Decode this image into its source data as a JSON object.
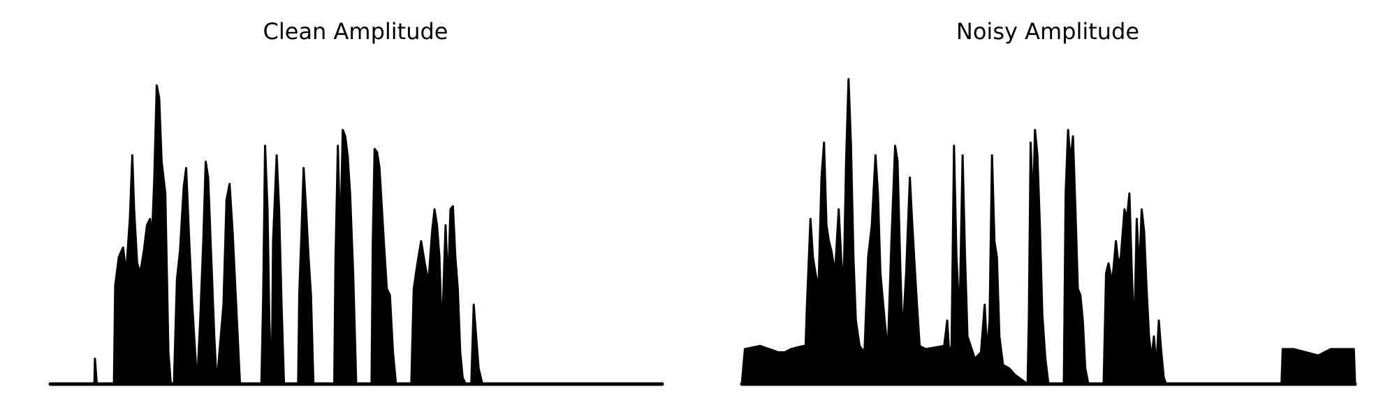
{
  "chart_data": [
    {
      "type": "line",
      "title": "Clean Amplitude",
      "axes_visible": false,
      "grid": false,
      "ylim": [
        0,
        1
      ],
      "x_range": [
        0,
        1
      ],
      "color": "#000000",
      "envelope": [
        [
          0.0,
          0.0
        ],
        [
          0.072,
          0.0
        ],
        [
          0.073,
          0.08
        ],
        [
          0.076,
          0.0
        ],
        [
          0.104,
          0.0
        ],
        [
          0.106,
          0.31
        ],
        [
          0.112,
          0.4
        ],
        [
          0.119,
          0.43
        ],
        [
          0.124,
          0.35
        ],
        [
          0.13,
          0.52
        ],
        [
          0.134,
          0.72
        ],
        [
          0.137,
          0.55
        ],
        [
          0.142,
          0.38
        ],
        [
          0.147,
          0.35
        ],
        [
          0.153,
          0.42
        ],
        [
          0.158,
          0.5
        ],
        [
          0.163,
          0.52
        ],
        [
          0.166,
          0.45
        ],
        [
          0.17,
          0.65
        ],
        [
          0.174,
          0.94
        ],
        [
          0.178,
          0.9
        ],
        [
          0.182,
          0.7
        ],
        [
          0.188,
          0.6
        ],
        [
          0.193,
          0.1
        ],
        [
          0.197,
          0.0
        ],
        [
          0.202,
          0.0
        ],
        [
          0.207,
          0.33
        ],
        [
          0.212,
          0.42
        ],
        [
          0.218,
          0.62
        ],
        [
          0.222,
          0.68
        ],
        [
          0.227,
          0.45
        ],
        [
          0.232,
          0.25
        ],
        [
          0.24,
          0.0
        ],
        [
          0.245,
          0.2
        ],
        [
          0.25,
          0.45
        ],
        [
          0.254,
          0.7
        ],
        [
          0.258,
          0.65
        ],
        [
          0.263,
          0.4
        ],
        [
          0.268,
          0.15
        ],
        [
          0.272,
          0.0
        ],
        [
          0.283,
          0.25
        ],
        [
          0.288,
          0.58
        ],
        [
          0.293,
          0.63
        ],
        [
          0.298,
          0.48
        ],
        [
          0.305,
          0.2
        ],
        [
          0.31,
          0.0
        ],
        [
          0.345,
          0.0
        ],
        [
          0.348,
          0.28
        ],
        [
          0.351,
          0.75
        ],
        [
          0.355,
          0.55
        ],
        [
          0.358,
          0.2
        ],
        [
          0.362,
          0.0
        ],
        [
          0.364,
          0.45
        ],
        [
          0.37,
          0.72
        ],
        [
          0.374,
          0.55
        ],
        [
          0.378,
          0.25
        ],
        [
          0.382,
          0.0
        ],
        [
          0.405,
          0.0
        ],
        [
          0.407,
          0.29
        ],
        [
          0.41,
          0.45
        ],
        [
          0.414,
          0.68
        ],
        [
          0.418,
          0.55
        ],
        [
          0.422,
          0.4
        ],
        [
          0.426,
          0.28
        ],
        [
          0.43,
          0.0
        ],
        [
          0.464,
          0.0
        ],
        [
          0.466,
          0.38
        ],
        [
          0.47,
          0.75
        ],
        [
          0.474,
          0.45
        ],
        [
          0.478,
          0.8
        ],
        [
          0.482,
          0.78
        ],
        [
          0.486,
          0.72
        ],
        [
          0.49,
          0.6
        ],
        [
          0.495,
          0.35
        ],
        [
          0.5,
          0.0
        ],
        [
          0.525,
          0.0
        ],
        [
          0.527,
          0.45
        ],
        [
          0.53,
          0.74
        ],
        [
          0.534,
          0.73
        ],
        [
          0.538,
          0.68
        ],
        [
          0.542,
          0.55
        ],
        [
          0.546,
          0.42
        ],
        [
          0.55,
          0.3
        ],
        [
          0.555,
          0.28
        ],
        [
          0.56,
          0.1
        ],
        [
          0.565,
          0.0
        ],
        [
          0.59,
          0.0
        ],
        [
          0.594,
          0.3
        ],
        [
          0.6,
          0.38
        ],
        [
          0.606,
          0.45
        ],
        [
          0.612,
          0.38
        ],
        [
          0.618,
          0.32
        ],
        [
          0.624,
          0.48
        ],
        [
          0.628,
          0.55
        ],
        [
          0.632,
          0.5
        ],
        [
          0.636,
          0.4
        ],
        [
          0.64,
          0.15
        ],
        [
          0.646,
          0.5
        ],
        [
          0.65,
          0.3
        ],
        [
          0.654,
          0.55
        ],
        [
          0.658,
          0.56
        ],
        [
          0.662,
          0.4
        ],
        [
          0.666,
          0.3
        ],
        [
          0.67,
          0.1
        ],
        [
          0.674,
          0.02
        ],
        [
          0.679,
          0.0
        ],
        [
          0.688,
          0.0
        ],
        [
          0.692,
          0.25
        ],
        [
          0.696,
          0.15
        ],
        [
          0.7,
          0.05
        ],
        [
          0.706,
          0.0
        ],
        [
          1.0,
          0.0
        ]
      ]
    },
    {
      "type": "line",
      "title": "Noisy Amplitude",
      "axes_visible": false,
      "grid": false,
      "ylim": [
        0,
        1
      ],
      "x_range": [
        0,
        1
      ],
      "color": "#000000",
      "envelope": [
        [
          0.0,
          0.0
        ],
        [
          0.005,
          0.11
        ],
        [
          0.03,
          0.12
        ],
        [
          0.06,
          0.1
        ],
        [
          0.07,
          0.1
        ],
        [
          0.08,
          0.11
        ],
        [
          0.1,
          0.12
        ],
        [
          0.104,
          0.12
        ],
        [
          0.106,
          0.24
        ],
        [
          0.112,
          0.52
        ],
        [
          0.116,
          0.4
        ],
        [
          0.12,
          0.35
        ],
        [
          0.125,
          0.3
        ],
        [
          0.13,
          0.65
        ],
        [
          0.134,
          0.76
        ],
        [
          0.138,
          0.5
        ],
        [
          0.142,
          0.45
        ],
        [
          0.146,
          0.42
        ],
        [
          0.152,
          0.35
        ],
        [
          0.158,
          0.55
        ],
        [
          0.162,
          0.4
        ],
        [
          0.166,
          0.3
        ],
        [
          0.17,
          0.7
        ],
        [
          0.174,
          0.96
        ],
        [
          0.178,
          0.75
        ],
        [
          0.182,
          0.4
        ],
        [
          0.186,
          0.2
        ],
        [
          0.192,
          0.12
        ],
        [
          0.2,
          0.1
        ],
        [
          0.206,
          0.4
        ],
        [
          0.212,
          0.5
        ],
        [
          0.218,
          0.72
        ],
        [
          0.222,
          0.6
        ],
        [
          0.226,
          0.35
        ],
        [
          0.232,
          0.22
        ],
        [
          0.238,
          0.1
        ],
        [
          0.244,
          0.45
        ],
        [
          0.25,
          0.75
        ],
        [
          0.254,
          0.7
        ],
        [
          0.258,
          0.4
        ],
        [
          0.262,
          0.15
        ],
        [
          0.268,
          0.35
        ],
        [
          0.274,
          0.65
        ],
        [
          0.278,
          0.5
        ],
        [
          0.284,
          0.3
        ],
        [
          0.29,
          0.12
        ],
        [
          0.3,
          0.11
        ],
        [
          0.33,
          0.12
        ],
        [
          0.335,
          0.2
        ],
        [
          0.338,
          0.1
        ],
        [
          0.342,
          0.12
        ],
        [
          0.346,
          0.75
        ],
        [
          0.35,
          0.4
        ],
        [
          0.355,
          0.2
        ],
        [
          0.36,
          0.72
        ],
        [
          0.364,
          0.4
        ],
        [
          0.368,
          0.15
        ],
        [
          0.38,
          0.08
        ],
        [
          0.39,
          0.1
        ],
        [
          0.396,
          0.25
        ],
        [
          0.4,
          0.1
        ],
        [
          0.404,
          0.2
        ],
        [
          0.408,
          0.72
        ],
        [
          0.412,
          0.45
        ],
        [
          0.416,
          0.4
        ],
        [
          0.42,
          0.15
        ],
        [
          0.426,
          0.06
        ],
        [
          0.436,
          0.05
        ],
        [
          0.445,
          0.03
        ],
        [
          0.466,
          0.0
        ],
        [
          0.468,
          0.2
        ],
        [
          0.471,
          0.76
        ],
        [
          0.475,
          0.55
        ],
        [
          0.478,
          0.8
        ],
        [
          0.482,
          0.72
        ],
        [
          0.486,
          0.5
        ],
        [
          0.49,
          0.22
        ],
        [
          0.495,
          0.08
        ],
        [
          0.5,
          0.0
        ],
        [
          0.525,
          0.0
        ],
        [
          0.528,
          0.6
        ],
        [
          0.532,
          0.8
        ],
        [
          0.536,
          0.7
        ],
        [
          0.54,
          0.78
        ],
        [
          0.544,
          0.55
        ],
        [
          0.548,
          0.3
        ],
        [
          0.552,
          0.28
        ],
        [
          0.556,
          0.2
        ],
        [
          0.56,
          0.05
        ],
        [
          0.565,
          0.0
        ],
        [
          0.59,
          0.0
        ],
        [
          0.594,
          0.35
        ],
        [
          0.598,
          0.38
        ],
        [
          0.604,
          0.32
        ],
        [
          0.61,
          0.45
        ],
        [
          0.614,
          0.38
        ],
        [
          0.618,
          0.4
        ],
        [
          0.624,
          0.55
        ],
        [
          0.628,
          0.52
        ],
        [
          0.632,
          0.6
        ],
        [
          0.636,
          0.35
        ],
        [
          0.64,
          0.15
        ],
        [
          0.644,
          0.52
        ],
        [
          0.648,
          0.35
        ],
        [
          0.652,
          0.55
        ],
        [
          0.656,
          0.48
        ],
        [
          0.66,
          0.3
        ],
        [
          0.664,
          0.15
        ],
        [
          0.668,
          0.08
        ],
        [
          0.672,
          0.15
        ],
        [
          0.676,
          0.05
        ],
        [
          0.68,
          0.2
        ],
        [
          0.684,
          0.1
        ],
        [
          0.688,
          0.02
        ],
        [
          0.692,
          0.0
        ],
        [
          0.88,
          0.0
        ],
        [
          0.882,
          0.11
        ],
        [
          0.9,
          0.11
        ],
        [
          0.92,
          0.1
        ],
        [
          0.94,
          0.09
        ],
        [
          0.96,
          0.11
        ],
        [
          0.98,
          0.11
        ],
        [
          0.998,
          0.11
        ],
        [
          1.0,
          0.0
        ]
      ]
    }
  ]
}
